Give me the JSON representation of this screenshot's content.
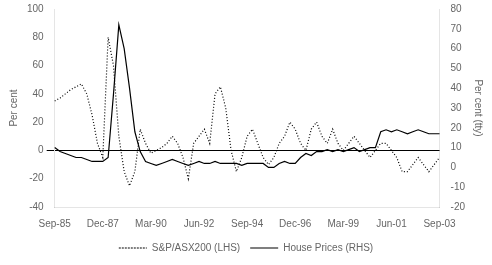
{
  "chart_data": {
    "type": "line",
    "categories": [
      "Sep-85",
      null,
      null,
      null,
      null,
      null,
      null,
      null,
      null,
      "Dec-87",
      null,
      null,
      null,
      null,
      null,
      null,
      null,
      null,
      "Mar-90",
      null,
      null,
      null,
      null,
      null,
      null,
      null,
      null,
      "Jun-92",
      null,
      null,
      null,
      null,
      null,
      null,
      null,
      null,
      "Sep-94",
      null,
      null,
      null,
      null,
      null,
      null,
      null,
      null,
      "Dec-96",
      null,
      null,
      null,
      null,
      null,
      null,
      null,
      null,
      "Mar-99",
      null,
      null,
      null,
      null,
      null,
      null,
      null,
      null,
      "Jun-01",
      null,
      null,
      null,
      null,
      null,
      null,
      null,
      null,
      "Sep-03"
    ],
    "ylabel": "Per cent",
    "y2label": "Per cent (tty)",
    "ylim": [
      -40,
      100
    ],
    "yticks": [
      -40,
      -20,
      0,
      20,
      40,
      60,
      80,
      100
    ],
    "y2lim": [
      -20,
      80
    ],
    "y2ticks": [
      -20,
      -10,
      0,
      10,
      20,
      30,
      40,
      50,
      60,
      70,
      80
    ],
    "grid": false,
    "legend": "bottom",
    "series": [
      {
        "name": "S&P/ASX200 (LHS)",
        "color": "#000000",
        "line_style": "dotted",
        "axis": "y",
        "values": [
          35,
          37,
          40,
          43,
          45,
          47,
          40,
          25,
          5,
          -5,
          80,
          60,
          10,
          -15,
          -25,
          -15,
          15,
          5,
          -2,
          0,
          2,
          5,
          10,
          5,
          -5,
          -20,
          5,
          10,
          15,
          5,
          40,
          45,
          30,
          0,
          -15,
          -5,
          10,
          15,
          5,
          -5,
          -10,
          -5,
          5,
          10,
          20,
          15,
          5,
          0,
          15,
          20,
          10,
          5,
          15,
          5,
          0,
          5,
          10,
          5,
          0,
          -5,
          0,
          5,
          5,
          0,
          -5,
          -15,
          -15,
          -10,
          -5,
          -10,
          -15,
          -10,
          -5
        ]
      },
      {
        "name": "House Prices (RHS)",
        "color": "#000000",
        "line_style": "solid",
        "axis": "y2",
        "values": [
          10,
          8,
          7,
          6,
          5,
          5,
          4,
          3,
          3,
          3,
          5,
          37,
          72,
          60,
          40,
          18,
          8,
          3,
          2,
          1,
          2,
          3,
          4,
          3,
          2,
          1,
          2,
          3,
          2,
          2,
          3,
          2,
          2,
          2,
          2,
          1,
          2,
          2,
          2,
          2,
          0,
          0,
          2,
          3,
          2,
          2,
          5,
          7,
          6,
          8,
          8,
          9,
          8,
          9,
          8,
          9,
          10,
          8,
          9,
          10,
          10,
          18,
          19,
          18,
          19,
          18,
          17,
          18,
          19,
          18,
          17,
          17,
          17
        ]
      }
    ]
  }
}
